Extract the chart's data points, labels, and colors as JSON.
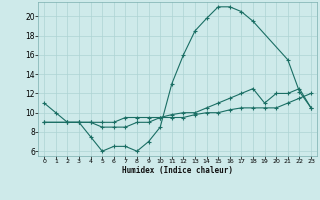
{
  "xlabel": "Humidex (Indice chaleur)",
  "bg_color": "#ceeaea",
  "grid_color": "#aed4d4",
  "line_color": "#1a6e64",
  "xlim": [
    -0.5,
    23.5
  ],
  "ylim": [
    5.5,
    21.5
  ],
  "yticks": [
    6,
    8,
    10,
    12,
    14,
    16,
    18,
    20
  ],
  "xticks": [
    0,
    1,
    2,
    3,
    4,
    5,
    6,
    7,
    8,
    9,
    10,
    11,
    12,
    13,
    14,
    15,
    16,
    17,
    18,
    19,
    20,
    21,
    22,
    23
  ],
  "series1_x": [
    0,
    1,
    2,
    3,
    4,
    5,
    6,
    7,
    8,
    9,
    10,
    11,
    12,
    13,
    14,
    15,
    16,
    17,
    18,
    21,
    22,
    23
  ],
  "series1_y": [
    11,
    10,
    9,
    9,
    7.5,
    6,
    6.5,
    6.5,
    6,
    7,
    8.5,
    13,
    16,
    18.5,
    19.8,
    21,
    21,
    20.5,
    19.5,
    15.5,
    12.2,
    10.5
  ],
  "series2_x": [
    0,
    2,
    3,
    4,
    5,
    6,
    7,
    8,
    9,
    10,
    11,
    12,
    13,
    14,
    15,
    16,
    17,
    18,
    19,
    20,
    21,
    22,
    23
  ],
  "series2_y": [
    9,
    9,
    9,
    9,
    9,
    9,
    9.5,
    9.5,
    9.5,
    9.5,
    9.8,
    10,
    10,
    10.5,
    11,
    11.5,
    12,
    12.5,
    11,
    12,
    12,
    12.5,
    10.5
  ],
  "series3_x": [
    0,
    2,
    3,
    4,
    5,
    6,
    7,
    8,
    9,
    10,
    11,
    12,
    13,
    14,
    15,
    16,
    17,
    18,
    19,
    20,
    21,
    22,
    23
  ],
  "series3_y": [
    9,
    9,
    9,
    9,
    8.5,
    8.5,
    8.5,
    9,
    9,
    9.5,
    9.5,
    9.5,
    9.8,
    10,
    10,
    10.3,
    10.5,
    10.5,
    10.5,
    10.5,
    11,
    11.5,
    12
  ]
}
